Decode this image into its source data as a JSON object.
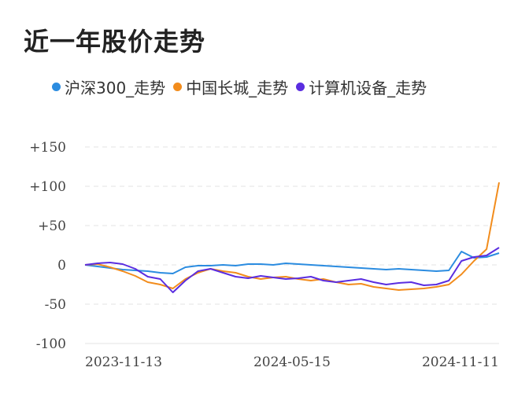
{
  "title": "近一年股价走势",
  "chart_data": {
    "type": "line",
    "title": "近一年股价走势",
    "xlabel": "",
    "ylabel": "",
    "ylim": [
      -100,
      150
    ],
    "y_ticks": [
      "+150",
      "+100",
      "+50",
      "0",
      "-50",
      "-100"
    ],
    "y_tick_values": [
      150,
      100,
      50,
      0,
      -50,
      -100
    ],
    "x_ticks": [
      "2023-11-13",
      "2024-05-15",
      "2024-11-11"
    ],
    "grid": true,
    "legend_position": "top",
    "x": [
      "2023-11-13",
      "2023-11-24",
      "2023-12-05",
      "2023-12-16",
      "2023-12-27",
      "2024-01-07",
      "2024-01-18",
      "2024-01-29",
      "2024-02-09",
      "2024-02-20",
      "2024-03-02",
      "2024-03-13",
      "2024-03-24",
      "2024-04-04",
      "2024-04-15",
      "2024-04-26",
      "2024-05-07",
      "2024-05-18",
      "2024-05-29",
      "2024-06-09",
      "2024-06-20",
      "2024-07-01",
      "2024-07-12",
      "2024-07-23",
      "2024-08-03",
      "2024-08-14",
      "2024-08-25",
      "2024-09-05",
      "2024-09-16",
      "2024-09-27",
      "2024-10-08",
      "2024-10-19",
      "2024-10-30",
      "2024-11-11"
    ],
    "series": [
      {
        "name": "沪深300_走势",
        "color": "#2b8ce0",
        "values": [
          0,
          -2,
          -4,
          -6,
          -7,
          -8,
          -10,
          -11,
          -3,
          -1,
          -1,
          0,
          -1,
          1,
          1,
          0,
          2,
          1,
          0,
          -1,
          -2,
          -3,
          -4,
          -5,
          -6,
          -5,
          -6,
          -7,
          -8,
          -7,
          17,
          9,
          10,
          15
        ]
      },
      {
        "name": "中国长城_走势",
        "color": "#f28c1c",
        "values": [
          0,
          1,
          -3,
          -8,
          -14,
          -22,
          -25,
          -30,
          -18,
          -10,
          -5,
          -8,
          -10,
          -15,
          -18,
          -16,
          -15,
          -18,
          -20,
          -18,
          -22,
          -25,
          -24,
          -28,
          -30,
          -32,
          -31,
          -30,
          -28,
          -25,
          -12,
          5,
          20,
          105
        ]
      },
      {
        "name": "计算机设备_走势",
        "color": "#5a2de0",
        "values": [
          0,
          2,
          3,
          1,
          -5,
          -15,
          -18,
          -35,
          -20,
          -8,
          -5,
          -10,
          -15,
          -17,
          -14,
          -16,
          -18,
          -17,
          -15,
          -20,
          -22,
          -20,
          -18,
          -22,
          -25,
          -23,
          -22,
          -26,
          -25,
          -20,
          5,
          10,
          12,
          22
        ]
      }
    ]
  }
}
